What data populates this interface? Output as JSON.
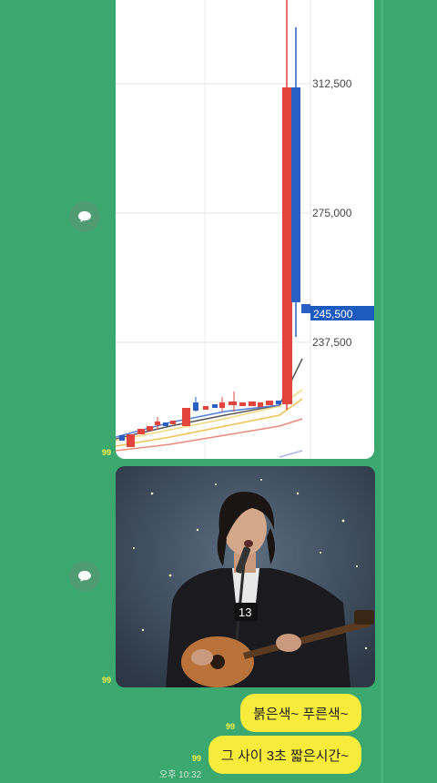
{
  "chat": {
    "messages": [
      {
        "type": "image-chart",
        "unread": "99"
      },
      {
        "type": "image-photo",
        "unread": "99"
      },
      {
        "type": "text",
        "text": "붉은색~ 푸른색~",
        "unread": "99"
      },
      {
        "type": "text",
        "text": "그 사이 3초 짧은시간~",
        "unread": "99",
        "time": "오후 10:32"
      }
    ]
  },
  "chart_data": {
    "type": "candlestick",
    "y_ticks": [
      "312,500",
      "275,000",
      "237,500"
    ],
    "current_price_label": "245,500",
    "colors": {
      "up": "#e0443a",
      "down": "#2a5fc4",
      "price_tag": "#1e5bbf"
    }
  },
  "colors": {
    "chat_background": "#3ba86f",
    "my_bubble": "#f7ec3c",
    "unread_count": "#f7f14a"
  }
}
